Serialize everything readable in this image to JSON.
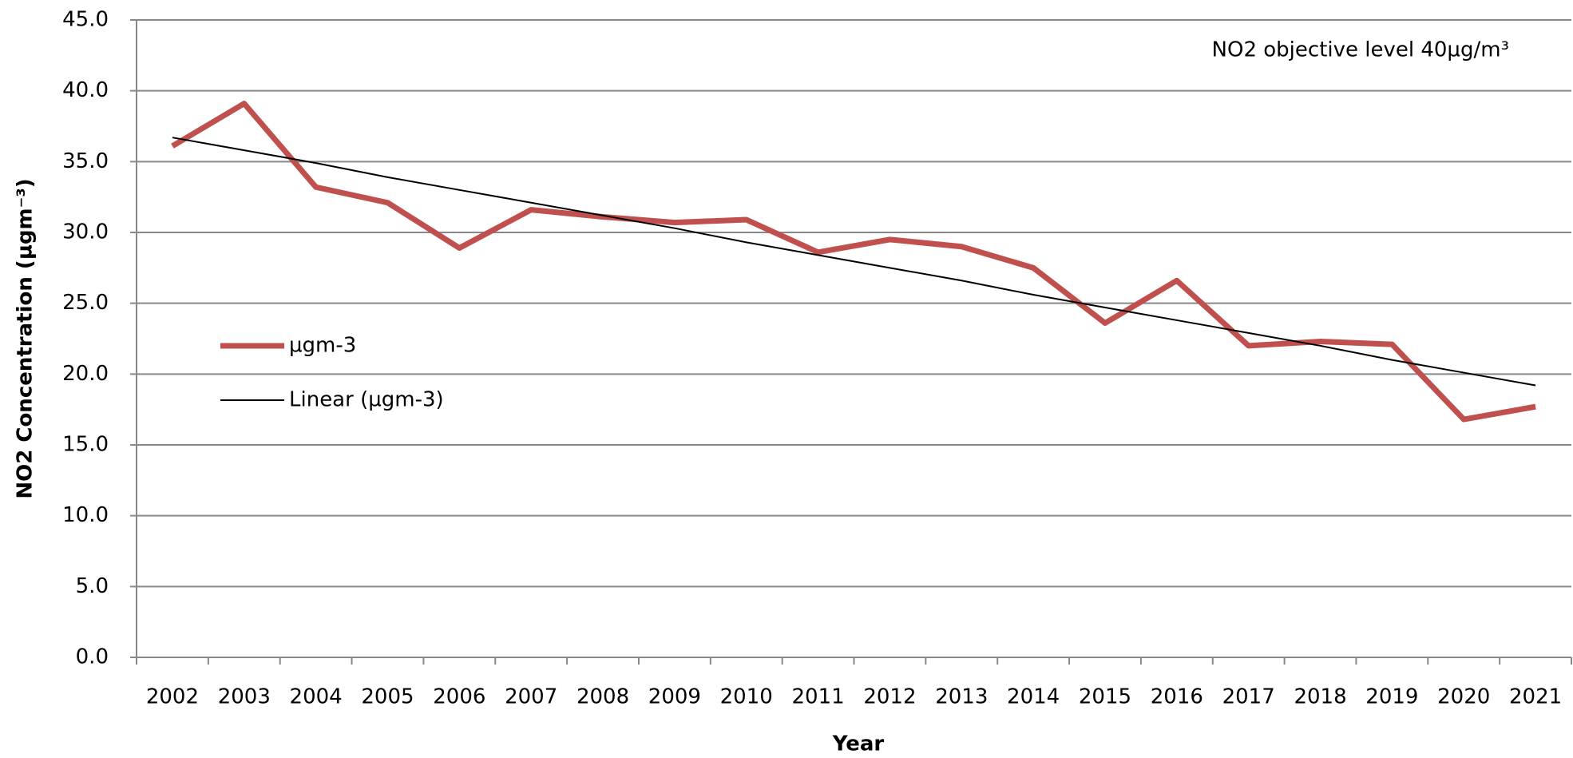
{
  "chart_data": {
    "type": "line",
    "x_label": "Year",
    "y_label": "NO2 Concentration (µgm⁻³)",
    "categories": [
      "2002",
      "2003",
      "2004",
      "2005",
      "2006",
      "2007",
      "2008",
      "2009",
      "2010",
      "2011",
      "2012",
      "2013",
      "2014",
      "2015",
      "2016",
      "2017",
      "2018",
      "2019",
      "2020",
      "2021"
    ],
    "series": [
      {
        "name": "µgm-3",
        "color": "#c0504d",
        "width": 7,
        "values": [
          36.1,
          39.1,
          33.2,
          32.1,
          28.9,
          31.6,
          31.1,
          30.7,
          30.9,
          28.6,
          29.5,
          29.0,
          27.5,
          23.6,
          26.6,
          22.0,
          22.3,
          22.1,
          16.8,
          17.7
        ]
      },
      {
        "name": "Linear (µgm-3)",
        "color": "#000000",
        "width": 2,
        "values": [
          36.7,
          35.8,
          34.9,
          33.9,
          33.0,
          32.1,
          31.2,
          30.3,
          29.3,
          28.4,
          27.5,
          26.6,
          25.6,
          24.7,
          23.8,
          22.9,
          22.0,
          21.0,
          20.1,
          19.2
        ]
      }
    ],
    "ylim": [
      0,
      45
    ],
    "yticks": [
      {
        "value": 0,
        "label": "0.0"
      },
      {
        "value": 5,
        "label": "5.0"
      },
      {
        "value": 10,
        "label": "10.0"
      },
      {
        "value": 15,
        "label": "15.0"
      },
      {
        "value": 20,
        "label": "20.0"
      },
      {
        "value": 25,
        "label": "25.0"
      },
      {
        "value": 30,
        "label": "30.0"
      },
      {
        "value": 35,
        "label": "35.0"
      },
      {
        "value": 40,
        "label": "40.0"
      },
      {
        "value": 45,
        "label": "45.0"
      }
    ],
    "grid": true,
    "legend": "left",
    "reference_line": {
      "value": 40,
      "color": "#f79646",
      "label": "NO2 objective level 40µg/m³"
    }
  }
}
